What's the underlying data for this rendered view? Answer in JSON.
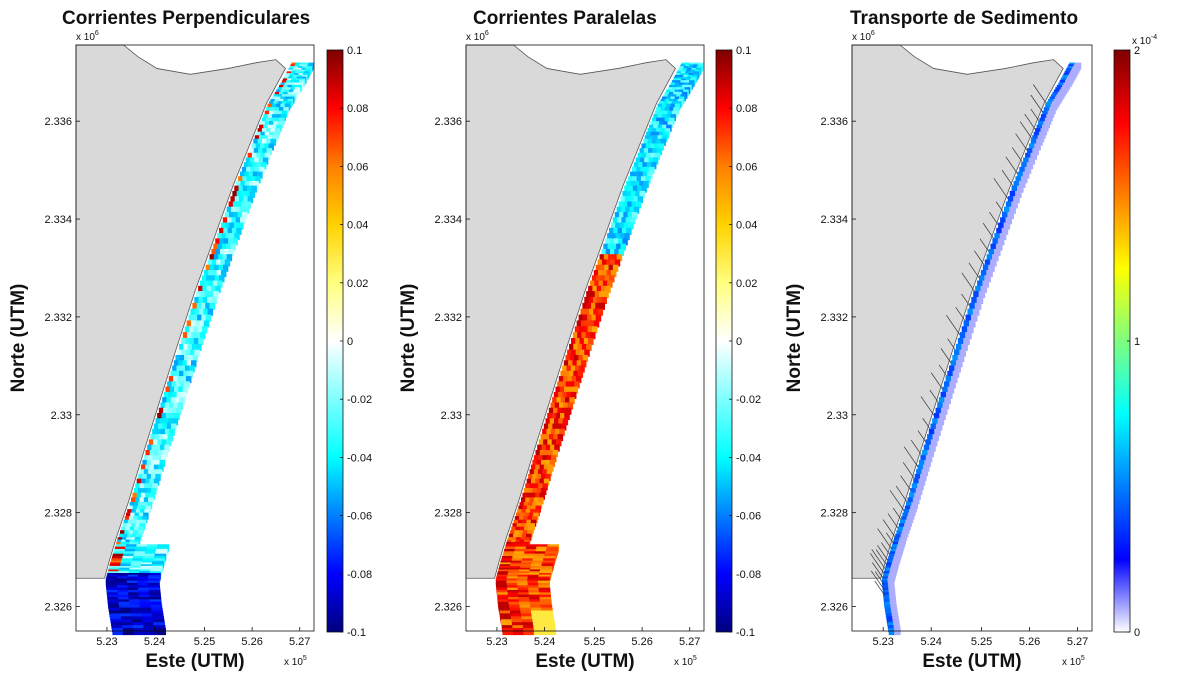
{
  "colors": {
    "land": "#d9d9d9",
    "coast_line": "#555555",
    "jet_colormap": [
      "#00007f",
      "#0000ff",
      "#007fff",
      "#00ffff",
      "#7fffff",
      "#ffffff",
      "#ffff7f",
      "#ffd200",
      "#ff7f00",
      "#ff0000",
      "#7f0000"
    ],
    "transport_colormap": [
      "#ffffff",
      "#0000ff",
      "#007fff",
      "#00ffff",
      "#7fff7f",
      "#ffff00",
      "#ff7f00",
      "#ff0000",
      "#7f0000"
    ]
  },
  "chart_data": [
    {
      "type": "heatmap",
      "title": "Corrientes Perpendiculares",
      "xlabel": "Este (UTM)",
      "ylabel": "Norte (UTM)",
      "x_multiplier": "x 10",
      "x_multiplier_exp": "5",
      "y_multiplier": "x 10",
      "y_multiplier_exp": "6",
      "x_ticks": [
        "5.23",
        "5.24",
        "5.25",
        "5.26",
        "5.27"
      ],
      "y_ticks": [
        "2.336",
        "2.334",
        "2.332",
        "2.33",
        "2.328",
        "2.326"
      ],
      "colorbar_ticks": [
        "0.1",
        "0.08",
        "0.06",
        "0.04",
        "0.02",
        "0",
        "-0.02",
        "-0.04",
        "-0.06",
        "-0.08",
        "-0.1"
      ],
      "colorbar_range": [
        -0.1,
        0.1
      ],
      "colormap": "jet",
      "dominant_value": -0.03
    },
    {
      "type": "heatmap",
      "title": "Corrientes Paralelas",
      "xlabel": "Este (UTM)",
      "ylabel": "Norte (UTM)",
      "x_multiplier": "x 10",
      "x_multiplier_exp": "5",
      "y_multiplier": "x 10",
      "y_multiplier_exp": "6",
      "x_ticks": [
        "5.23",
        "5.24",
        "5.25",
        "5.26",
        "5.27"
      ],
      "y_ticks": [
        "2.336",
        "2.334",
        "2.332",
        "2.33",
        "2.328",
        "2.326"
      ],
      "colorbar_ticks": [
        "0.1",
        "0.08",
        "0.06",
        "0.04",
        "0.02",
        "0",
        "-0.02",
        "-0.04",
        "-0.06",
        "-0.08",
        "-0.1"
      ],
      "colorbar_range": [
        -0.1,
        0.1
      ],
      "colormap": "jet",
      "dominant_value_south": 0.07,
      "dominant_value_north": -0.04
    },
    {
      "type": "heatmap",
      "title": "Transporte de Sedimento",
      "xlabel": "Este (UTM)",
      "ylabel": "Norte (UTM)",
      "x_multiplier": "x 10",
      "x_multiplier_exp": "5",
      "y_multiplier": "x 10",
      "y_multiplier_exp": "6",
      "x_ticks": [
        "5.23",
        "5.24",
        "5.25",
        "5.26",
        "5.27"
      ],
      "y_ticks": [
        "2.336",
        "2.334",
        "2.332",
        "2.33",
        "2.328",
        "2.326"
      ],
      "colorbar_ticks": [
        "2",
        "1",
        "0"
      ],
      "colorbar_multiplier": "x 10",
      "colorbar_multiplier_exp": "-4",
      "colorbar_range": [
        0,
        2
      ],
      "colormap": "jet-white",
      "vectors": true
    }
  ]
}
